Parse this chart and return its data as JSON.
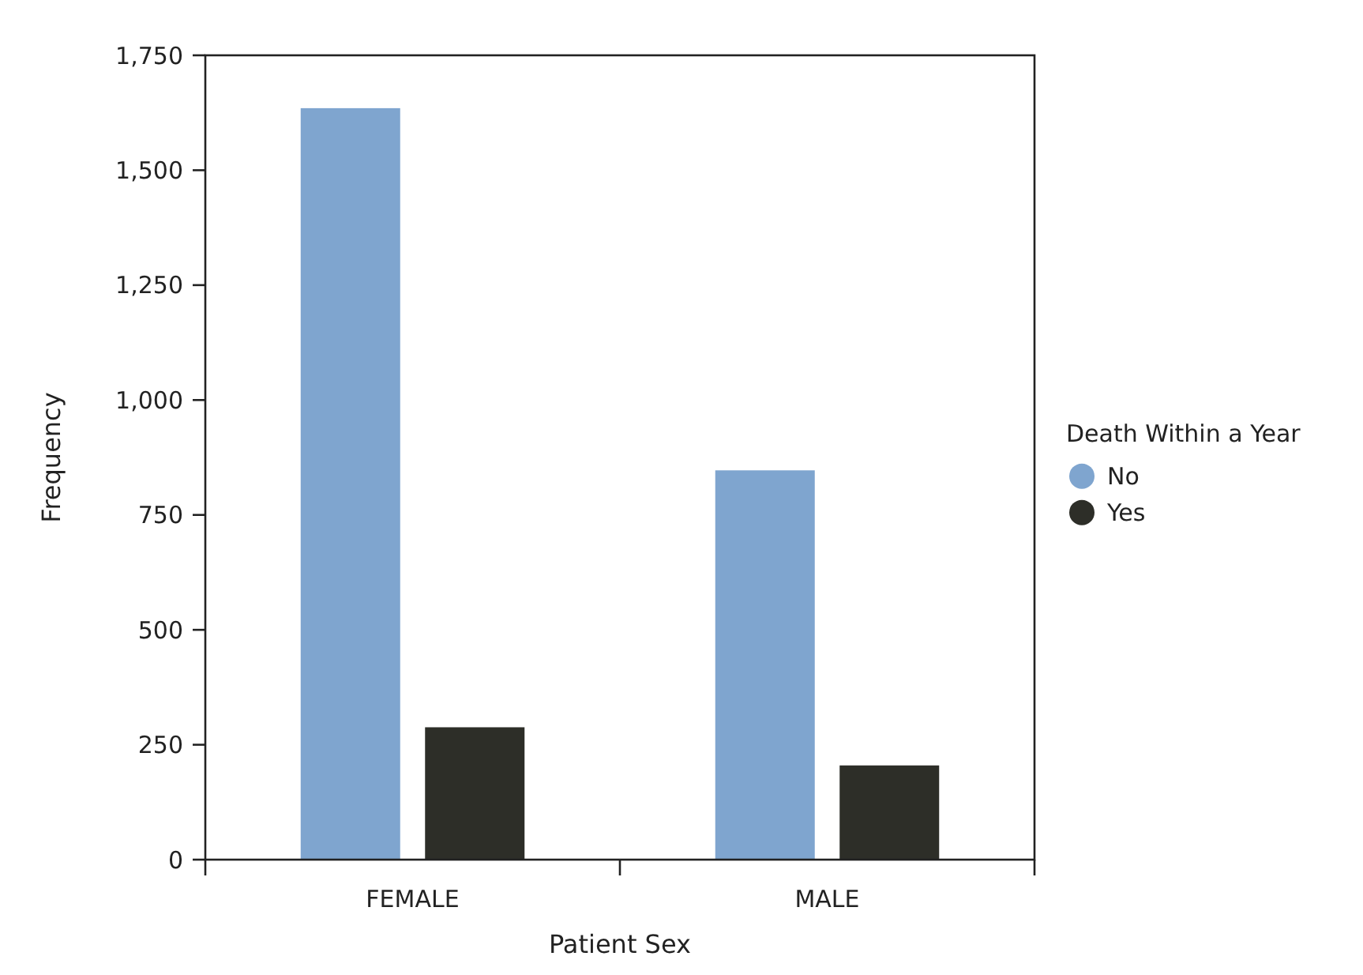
{
  "chart_data": {
    "type": "bar",
    "xlabel": "Patient Sex",
    "ylabel": "Frequency",
    "legend_title": "Death Within a Year",
    "categories": [
      "FEMALE",
      "MALE"
    ],
    "series": [
      {
        "name": "No",
        "color": "#7fa5cf",
        "values": [
          1635,
          847
        ]
      },
      {
        "name": "Yes",
        "color": "#2d2e28",
        "values": [
          288,
          205
        ]
      }
    ],
    "ylim": [
      0,
      1750
    ],
    "yticks": [
      {
        "value": 0,
        "label": "0"
      },
      {
        "value": 250,
        "label": "250"
      },
      {
        "value": 500,
        "label": "500"
      },
      {
        "value": 750,
        "label": "750"
      },
      {
        "value": 1000,
        "label": "1,000"
      },
      {
        "value": 1250,
        "label": "1,250"
      },
      {
        "value": 1500,
        "label": "1,500"
      },
      {
        "value": 1750,
        "label": "1,750"
      }
    ],
    "grid": false,
    "legend": "right"
  }
}
